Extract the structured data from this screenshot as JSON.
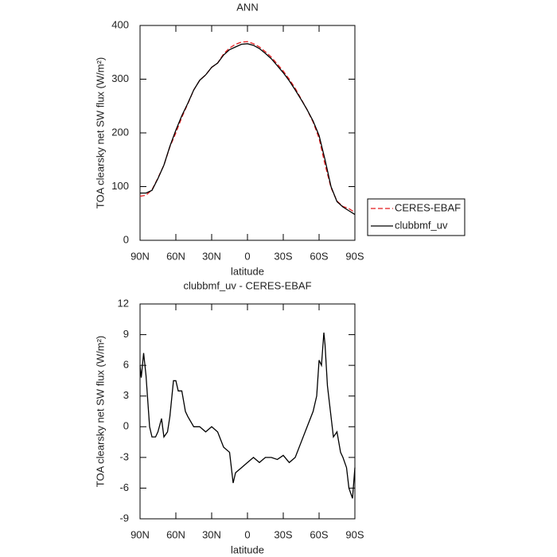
{
  "chart_data": [
    {
      "type": "line",
      "title": "ANN",
      "x_label": "latitude",
      "y_label": "TOA clearsky net SW flux (W/m²)",
      "x": [
        90,
        85,
        80,
        75,
        70,
        65,
        60,
        55,
        50,
        45,
        40,
        35,
        30,
        25,
        20,
        15,
        10,
        5,
        0,
        -5,
        -10,
        -15,
        -20,
        -25,
        -30,
        -35,
        -40,
        -45,
        -50,
        -55,
        -60,
        -65,
        -70,
        -75,
        -80,
        -85,
        -90
      ],
      "series": [
        {
          "name": "CERES-EBAF",
          "color": "#e41a1c",
          "style": "dashed",
          "values": [
            82,
            84,
            94,
            116,
            140,
            174,
            200,
            229,
            254,
            280,
            298,
            308,
            322,
            330,
            347,
            358,
            365,
            369,
            370,
            366,
            360,
            351,
            341,
            328,
            315,
            300,
            283,
            263,
            243,
            220,
            190,
            141,
            98,
            73,
            63,
            59,
            52
          ]
        },
        {
          "name": "clubbmf_uv",
          "color": "#000000",
          "style": "solid",
          "values": [
            88,
            88,
            93,
            115,
            140,
            175,
            205,
            232,
            255,
            280,
            298,
            308,
            322,
            330,
            345,
            355,
            360,
            365,
            366,
            363,
            357,
            348,
            338,
            325,
            312,
            297,
            280,
            262,
            243,
            222,
            195,
            150,
            100,
            72,
            62,
            55,
            48
          ]
        }
      ],
      "xlim": [
        90,
        -90
      ],
      "xticks": [
        {
          "value": 90,
          "label": "90N"
        },
        {
          "value": 60,
          "label": "60N"
        },
        {
          "value": 30,
          "label": "30N"
        },
        0,
        {
          "value": -30,
          "label": "30S"
        },
        {
          "value": -60,
          "label": "60S"
        },
        {
          "value": -90,
          "label": "90S"
        }
      ],
      "ylim": [
        0,
        400
      ],
      "yticks": [
        0,
        100,
        200,
        300,
        400
      ],
      "legend": "right"
    },
    {
      "type": "line",
      "title": "clubbmf_uv - CERES-EBAF",
      "x_label": "latitude",
      "y_label": "TOA clearsky net SW flux (W/m²)",
      "x": [
        90,
        89,
        87,
        85,
        82,
        80,
        77,
        75,
        72,
        70,
        67,
        65,
        62,
        60,
        58,
        55,
        52,
        50,
        45,
        40,
        35,
        30,
        25,
        20,
        15,
        12,
        10,
        5,
        0,
        -5,
        -10,
        -15,
        -20,
        -25,
        -30,
        -35,
        -40,
        -45,
        -50,
        -55,
        -58,
        -60,
        -62,
        -64,
        -65,
        -67,
        -70,
        -72,
        -75,
        -78,
        -80,
        -83,
        -85,
        -88,
        -90
      ],
      "series": [
        {
          "name": "clubbmf_uv - CERES-EBAF",
          "color": "#000000",
          "style": "solid",
          "values": [
            6,
            4.8,
            7.2,
            5,
            0,
            -1,
            -1,
            -0.5,
            0.8,
            -1,
            -0.5,
            1,
            4.5,
            4.5,
            3.5,
            3.5,
            1.5,
            1,
            0,
            0,
            -0.5,
            0,
            -0.5,
            -2,
            -2.5,
            -5.5,
            -4.5,
            -4,
            -3.5,
            -3,
            -3.5,
            -3,
            -3,
            -3.2,
            -2.8,
            -3.5,
            -3,
            -1.5,
            0,
            1.5,
            3,
            6.5,
            6,
            9.2,
            8,
            4,
            1,
            -1,
            -0.5,
            -2.5,
            -3,
            -4,
            -6,
            -7,
            -4
          ]
        }
      ],
      "xlim": [
        90,
        -90
      ],
      "xticks": [
        {
          "value": 90,
          "label": "90N"
        },
        {
          "value": 60,
          "label": "60N"
        },
        {
          "value": 30,
          "label": "30N"
        },
        0,
        {
          "value": -30,
          "label": "30S"
        },
        {
          "value": -60,
          "label": "60S"
        },
        {
          "value": -90,
          "label": "90S"
        }
      ],
      "ylim": [
        -9,
        12
      ],
      "yticks": [
        -9,
        -6,
        -3,
        0,
        3,
        6,
        9,
        12
      ]
    }
  ]
}
